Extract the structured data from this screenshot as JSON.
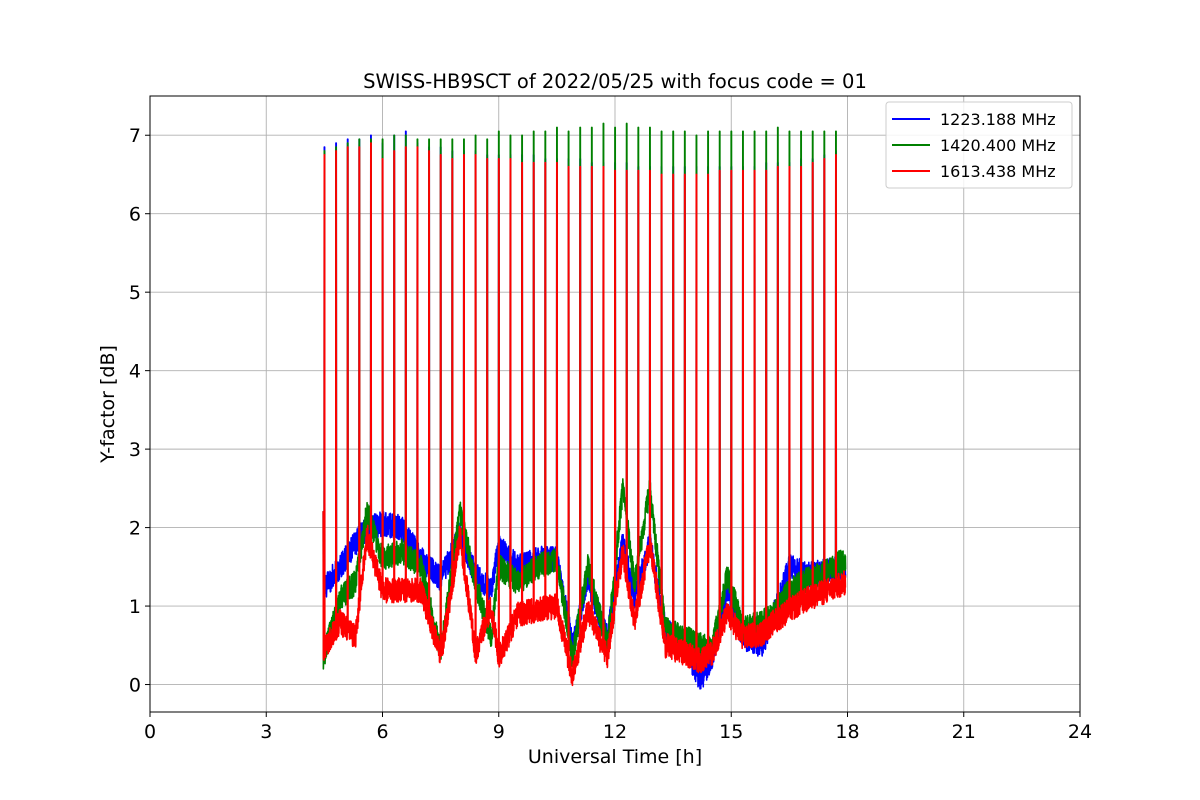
{
  "chart_data": {
    "type": "line",
    "title": "SWISS-HB9SCT of 2022/05/25 with focus code = 01",
    "xlabel": "Universal Time [h]",
    "ylabel": "Y-factor [dB]",
    "xlim": [
      0,
      24
    ],
    "ylim": [
      -0.35,
      7.5
    ],
    "xticks": [
      0,
      3,
      6,
      9,
      12,
      15,
      18,
      21,
      24
    ],
    "yticks": [
      0,
      1,
      2,
      3,
      4,
      5,
      6,
      7
    ],
    "grid": true,
    "legend_position": "top-right",
    "series": [
      {
        "name": "1223.188 MHz",
        "color": "#0000ff",
        "peak_times": [
          4.5,
          4.8,
          5.1,
          5.4,
          5.7,
          6.0,
          6.3,
          6.6,
          6.9,
          7.2,
          7.5,
          7.8,
          8.1,
          8.4,
          8.7,
          9.0,
          9.3,
          9.6,
          9.9,
          10.2,
          10.5,
          10.8,
          11.1,
          11.4,
          11.7,
          12.0,
          12.3,
          12.6,
          12.9,
          13.2,
          13.5,
          13.8,
          14.1,
          14.4,
          14.7,
          15.0,
          15.3,
          15.6,
          15.9,
          16.2,
          16.5,
          16.8,
          17.1,
          17.4,
          17.7
        ],
        "peak_values": [
          6.85,
          6.9,
          6.95,
          6.95,
          7.0,
          6.9,
          7.0,
          7.05,
          6.9,
          6.85,
          6.85,
          6.8,
          6.8,
          6.8,
          6.75,
          6.75,
          6.75,
          6.75,
          6.75,
          6.7,
          6.7,
          6.7,
          6.7,
          6.65,
          6.65,
          6.65,
          6.65,
          6.6,
          6.6,
          6.6,
          6.6,
          6.6,
          6.6,
          6.6,
          6.6,
          6.6,
          6.6,
          6.6,
          6.65,
          6.65,
          6.65,
          6.7,
          6.7,
          6.75,
          6.8
        ],
        "baseline": [
          [
            4.45,
            1.2
          ],
          [
            4.9,
            1.5
          ],
          [
            5.3,
            1.8
          ],
          [
            5.6,
            2.0
          ],
          [
            6.0,
            2.05
          ],
          [
            6.5,
            2.0
          ],
          [
            7.0,
            1.6
          ],
          [
            7.5,
            1.35
          ],
          [
            8.0,
            1.9
          ],
          [
            8.4,
            1.4
          ],
          [
            8.8,
            1.2
          ],
          [
            9.0,
            1.75
          ],
          [
            9.5,
            1.5
          ],
          [
            10.0,
            1.6
          ],
          [
            10.5,
            1.6
          ],
          [
            10.9,
            0.5
          ],
          [
            11.3,
            1.3
          ],
          [
            11.8,
            0.6
          ],
          [
            12.2,
            1.8
          ],
          [
            12.5,
            1.1
          ],
          [
            12.9,
            1.8
          ],
          [
            13.3,
            0.7
          ],
          [
            13.8,
            0.5
          ],
          [
            14.2,
            0.05
          ],
          [
            14.5,
            0.35
          ],
          [
            14.9,
            1.2
          ],
          [
            15.3,
            0.6
          ],
          [
            15.8,
            0.5
          ],
          [
            16.1,
            0.9
          ],
          [
            16.5,
            1.5
          ],
          [
            17.0,
            1.4
          ],
          [
            17.5,
            1.45
          ],
          [
            17.95,
            1.5
          ]
        ]
      },
      {
        "name": "1420.400 MHz",
        "color": "#008000",
        "peak_times": [
          4.5,
          4.8,
          5.1,
          5.4,
          5.7,
          6.0,
          6.3,
          6.6,
          6.9,
          7.2,
          7.5,
          7.8,
          8.1,
          8.4,
          8.7,
          9.0,
          9.3,
          9.6,
          9.9,
          10.2,
          10.5,
          10.8,
          11.1,
          11.4,
          11.7,
          12.0,
          12.3,
          12.6,
          12.9,
          13.2,
          13.5,
          13.8,
          14.1,
          14.4,
          14.7,
          15.0,
          15.3,
          15.6,
          15.9,
          16.2,
          16.5,
          16.8,
          17.1,
          17.4,
          17.7
        ],
        "peak_values": [
          6.8,
          6.85,
          6.9,
          6.95,
          6.95,
          6.95,
          7.0,
          7.0,
          6.95,
          6.95,
          6.95,
          6.95,
          6.95,
          7.0,
          6.95,
          7.05,
          7.0,
          7.0,
          7.05,
          7.05,
          7.1,
          7.05,
          7.1,
          7.1,
          7.15,
          7.1,
          7.15,
          7.1,
          7.1,
          7.05,
          7.05,
          7.05,
          7.0,
          7.05,
          7.05,
          7.05,
          7.05,
          7.05,
          7.05,
          7.1,
          7.05,
          7.05,
          7.05,
          7.05,
          7.05
        ],
        "baseline": [
          [
            4.45,
            0.3
          ],
          [
            4.9,
            1.1
          ],
          [
            5.3,
            1.3
          ],
          [
            5.6,
            2.2
          ],
          [
            6.0,
            1.6
          ],
          [
            6.5,
            1.7
          ],
          [
            7.0,
            1.5
          ],
          [
            7.5,
            0.4
          ],
          [
            8.0,
            2.2
          ],
          [
            8.4,
            1.3
          ],
          [
            8.8,
            0.6
          ],
          [
            9.0,
            1.5
          ],
          [
            9.5,
            1.3
          ],
          [
            10.0,
            1.5
          ],
          [
            10.5,
            1.6
          ],
          [
            10.9,
            0.35
          ],
          [
            11.3,
            1.5
          ],
          [
            11.8,
            0.5
          ],
          [
            12.2,
            2.5
          ],
          [
            12.5,
            1.3
          ],
          [
            12.9,
            2.5
          ],
          [
            13.3,
            0.7
          ],
          [
            13.8,
            0.6
          ],
          [
            14.2,
            0.5
          ],
          [
            14.5,
            0.45
          ],
          [
            14.9,
            1.4
          ],
          [
            15.3,
            0.7
          ],
          [
            15.8,
            0.8
          ],
          [
            16.1,
            0.9
          ],
          [
            16.5,
            1.2
          ],
          [
            17.0,
            1.35
          ],
          [
            17.5,
            1.45
          ],
          [
            17.95,
            1.6
          ]
        ]
      },
      {
        "name": "1613.438 MHz",
        "color": "#ff0000",
        "peak_times": [
          4.5,
          4.8,
          5.1,
          5.4,
          5.7,
          6.0,
          6.3,
          6.6,
          6.9,
          7.2,
          7.5,
          7.8,
          8.1,
          8.4,
          8.7,
          9.0,
          9.3,
          9.6,
          9.9,
          10.2,
          10.5,
          10.8,
          11.1,
          11.4,
          11.7,
          12.0,
          12.3,
          12.6,
          12.9,
          13.2,
          13.5,
          13.8,
          14.1,
          14.4,
          14.7,
          15.0,
          15.3,
          15.6,
          15.9,
          16.2,
          16.5,
          16.8,
          17.1,
          17.4,
          17.7
        ],
        "peak_values": [
          6.75,
          6.8,
          6.85,
          6.85,
          6.9,
          6.7,
          6.8,
          6.85,
          6.85,
          6.8,
          6.75,
          6.7,
          6.75,
          6.75,
          6.7,
          6.7,
          6.7,
          6.65,
          6.65,
          6.65,
          6.65,
          6.6,
          6.6,
          6.6,
          6.6,
          6.55,
          6.55,
          6.55,
          6.55,
          6.5,
          6.5,
          6.5,
          6.5,
          6.5,
          6.55,
          6.55,
          6.55,
          6.55,
          6.55,
          6.6,
          6.6,
          6.6,
          6.65,
          6.7,
          6.75
        ],
        "baseline": [
          [
            4.45,
            0.4
          ],
          [
            4.9,
            0.8
          ],
          [
            5.3,
            0.6
          ],
          [
            5.6,
            1.9
          ],
          [
            6.0,
            1.2
          ],
          [
            6.5,
            1.2
          ],
          [
            7.0,
            1.2
          ],
          [
            7.5,
            0.35
          ],
          [
            8.0,
            1.9
          ],
          [
            8.4,
            0.4
          ],
          [
            8.8,
            1.0
          ],
          [
            9.0,
            0.35
          ],
          [
            9.5,
            0.9
          ],
          [
            10.0,
            0.95
          ],
          [
            10.5,
            1.0
          ],
          [
            10.9,
            0.1
          ],
          [
            11.3,
            0.95
          ],
          [
            11.8,
            0.35
          ],
          [
            12.2,
            1.7
          ],
          [
            12.5,
            0.8
          ],
          [
            12.9,
            1.8
          ],
          [
            13.3,
            0.5
          ],
          [
            13.8,
            0.4
          ],
          [
            14.2,
            0.3
          ],
          [
            14.5,
            0.4
          ],
          [
            14.9,
            0.9
          ],
          [
            15.3,
            0.6
          ],
          [
            15.8,
            0.65
          ],
          [
            16.1,
            0.8
          ],
          [
            16.5,
            0.95
          ],
          [
            17.0,
            1.1
          ],
          [
            17.5,
            1.2
          ],
          [
            17.95,
            1.3
          ]
        ]
      }
    ]
  }
}
